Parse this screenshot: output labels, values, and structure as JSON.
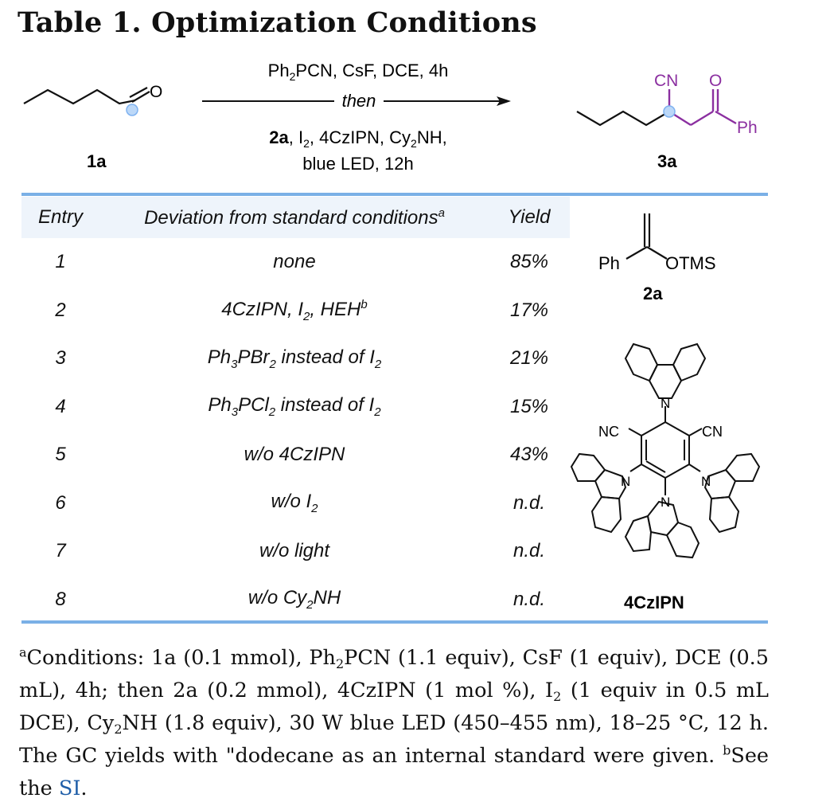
{
  "title": "Table 1. Optimization Conditions",
  "scheme": {
    "substrate_label": "1a",
    "substrate_atom": "O",
    "reagents_line1": "Ph2PCN, CsF, DCE, 4h",
    "then": "then",
    "reagents_line3": "2a, I2, 4CzIPN, Cy2NH,",
    "reagents_line4": "blue LED, 12h",
    "product_label": "3a",
    "product_cn": "CN",
    "product_o": "O",
    "product_ph": "Ph"
  },
  "table": {
    "headers": {
      "entry": "Entry",
      "deviation": "Deviation from standard conditions",
      "deviation_sup": "a",
      "yield": "Yield"
    },
    "rows": [
      {
        "entry": "1",
        "deviation": "none",
        "yield": "85%"
      },
      {
        "entry": "2",
        "deviation": "4CzIPN, I2, HEH",
        "yield": "17%"
      },
      {
        "entry": "3",
        "deviation": "Ph3PBr2 instead of I2",
        "yield": "21%"
      },
      {
        "entry": "4",
        "deviation": "Ph3PCl2 instead of I2",
        "yield": "15%"
      },
      {
        "entry": "5",
        "deviation": "w/o 4CzIPN",
        "yield": "43%"
      },
      {
        "entry": "6",
        "deviation": "w/o I2",
        "yield": "n.d."
      },
      {
        "entry": "7",
        "deviation": "w/o light",
        "yield": "n.d."
      },
      {
        "entry": "8",
        "deviation": "w/o Cy2NH",
        "yield": "n.d."
      }
    ]
  },
  "side": {
    "reagent_2a": {
      "left": "Ph",
      "right": "OTMS",
      "label": "2a"
    },
    "catalyst": {
      "cn_left": "NC",
      "cn_right": "CN",
      "n": "N",
      "label": "4CzIPN"
    }
  },
  "footnote": {
    "text": "Conditions: 1a (0.1 mmol), Ph2PCN (1.1 equiv), CsF (1 equiv), DCE (0.5 mL), 4h; then 2a (0.2 mmol), 4CzIPN (1 mol %), I2 (1 equiv in 0.5 mL DCE), Cy2NH (1.8 equiv), 30 W blue LED (450–455 nm), 18–25 °C, 12 h. The GC yields with \"dodecane as an internal standard were given. See the SI.",
    "si_link": "SI"
  },
  "colors": {
    "rule": "#7ab0e6",
    "header_bg": "#eef4fb",
    "product_bond": "#8b2fa0",
    "highlight": "#7fb2f0",
    "link": "#1f5ea8"
  }
}
